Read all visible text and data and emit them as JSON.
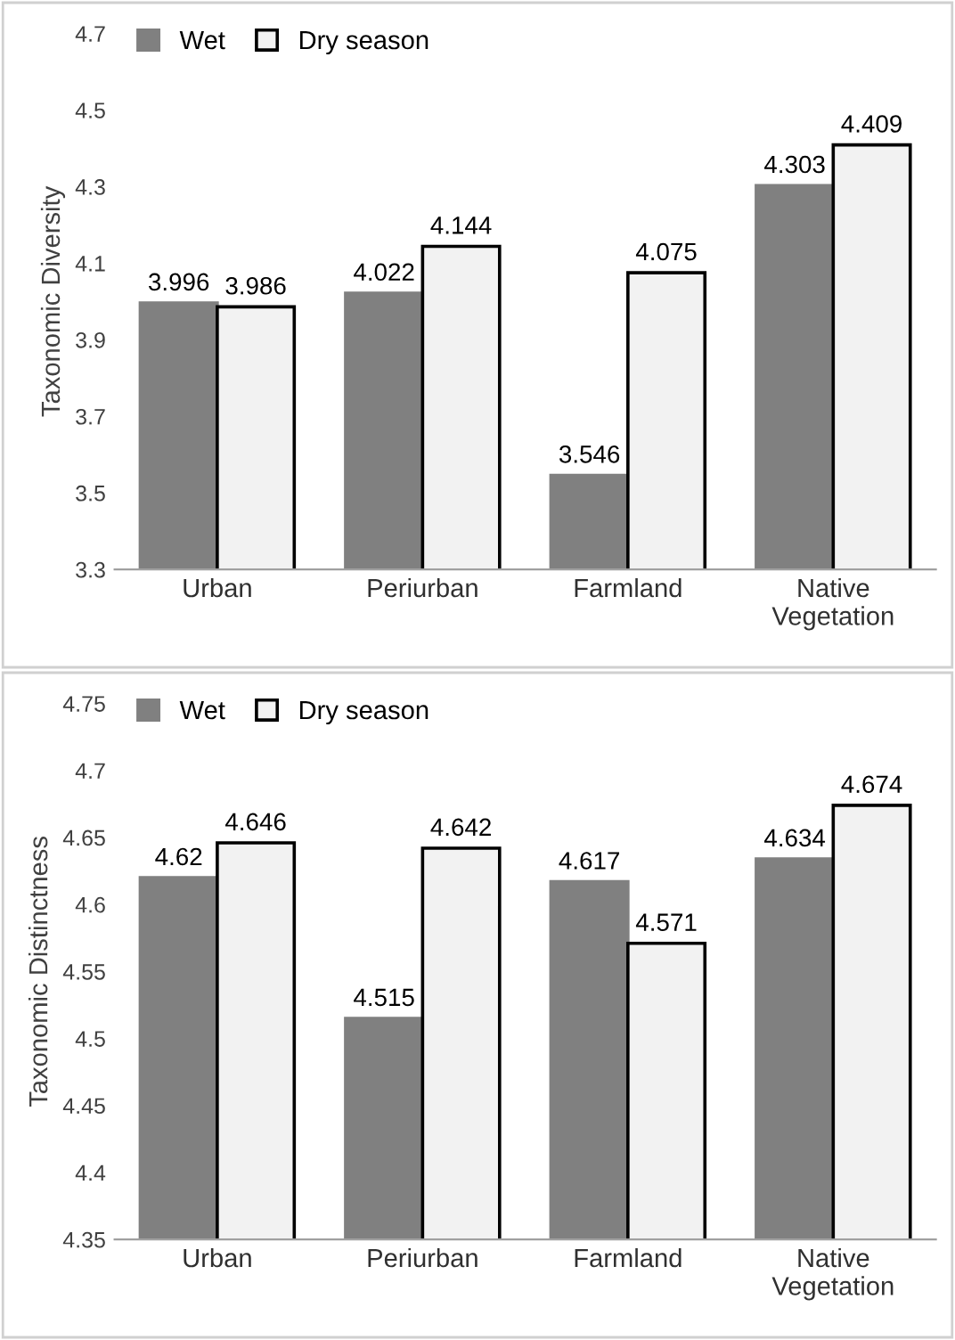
{
  "chart_data": [
    {
      "type": "bar",
      "ylabel": "Taxonomic Diversity",
      "categories": [
        "Urban",
        "Periurban",
        "Farmland",
        "Native\nVegetation"
      ],
      "series": [
        {
          "name": "Wet",
          "color": "#808080",
          "values": [
            3.996,
            4.022,
            3.546,
            4.303
          ]
        },
        {
          "name": "Dry season",
          "color": "#f2f2f2",
          "values": [
            3.986,
            4.144,
            4.075,
            4.409
          ]
        }
      ],
      "ylim": [
        3.3,
        4.7
      ],
      "yticks": [
        3.3,
        3.5,
        3.7,
        3.9,
        4.1,
        4.3,
        4.5,
        4.7
      ],
      "data_labels": true,
      "legend": "top left",
      "grid": false
    },
    {
      "type": "bar",
      "ylabel": "Taxonomic Distinctness",
      "categories": [
        "Urban",
        "Periurban",
        "Farmland",
        "Native\nVegetation"
      ],
      "series": [
        {
          "name": "Wet",
          "color": "#808080",
          "values": [
            4.62,
            4.515,
            4.617,
            4.634
          ]
        },
        {
          "name": "Dry season",
          "color": "#f2f2f2",
          "values": [
            4.646,
            4.642,
            4.571,
            4.674
          ]
        }
      ],
      "ylim": [
        4.35,
        4.75
      ],
      "yticks": [
        4.35,
        4.4,
        4.45,
        4.5,
        4.55,
        4.6,
        4.65,
        4.7,
        4.75
      ],
      "data_labels": true,
      "legend": "top left",
      "grid": false
    }
  ]
}
